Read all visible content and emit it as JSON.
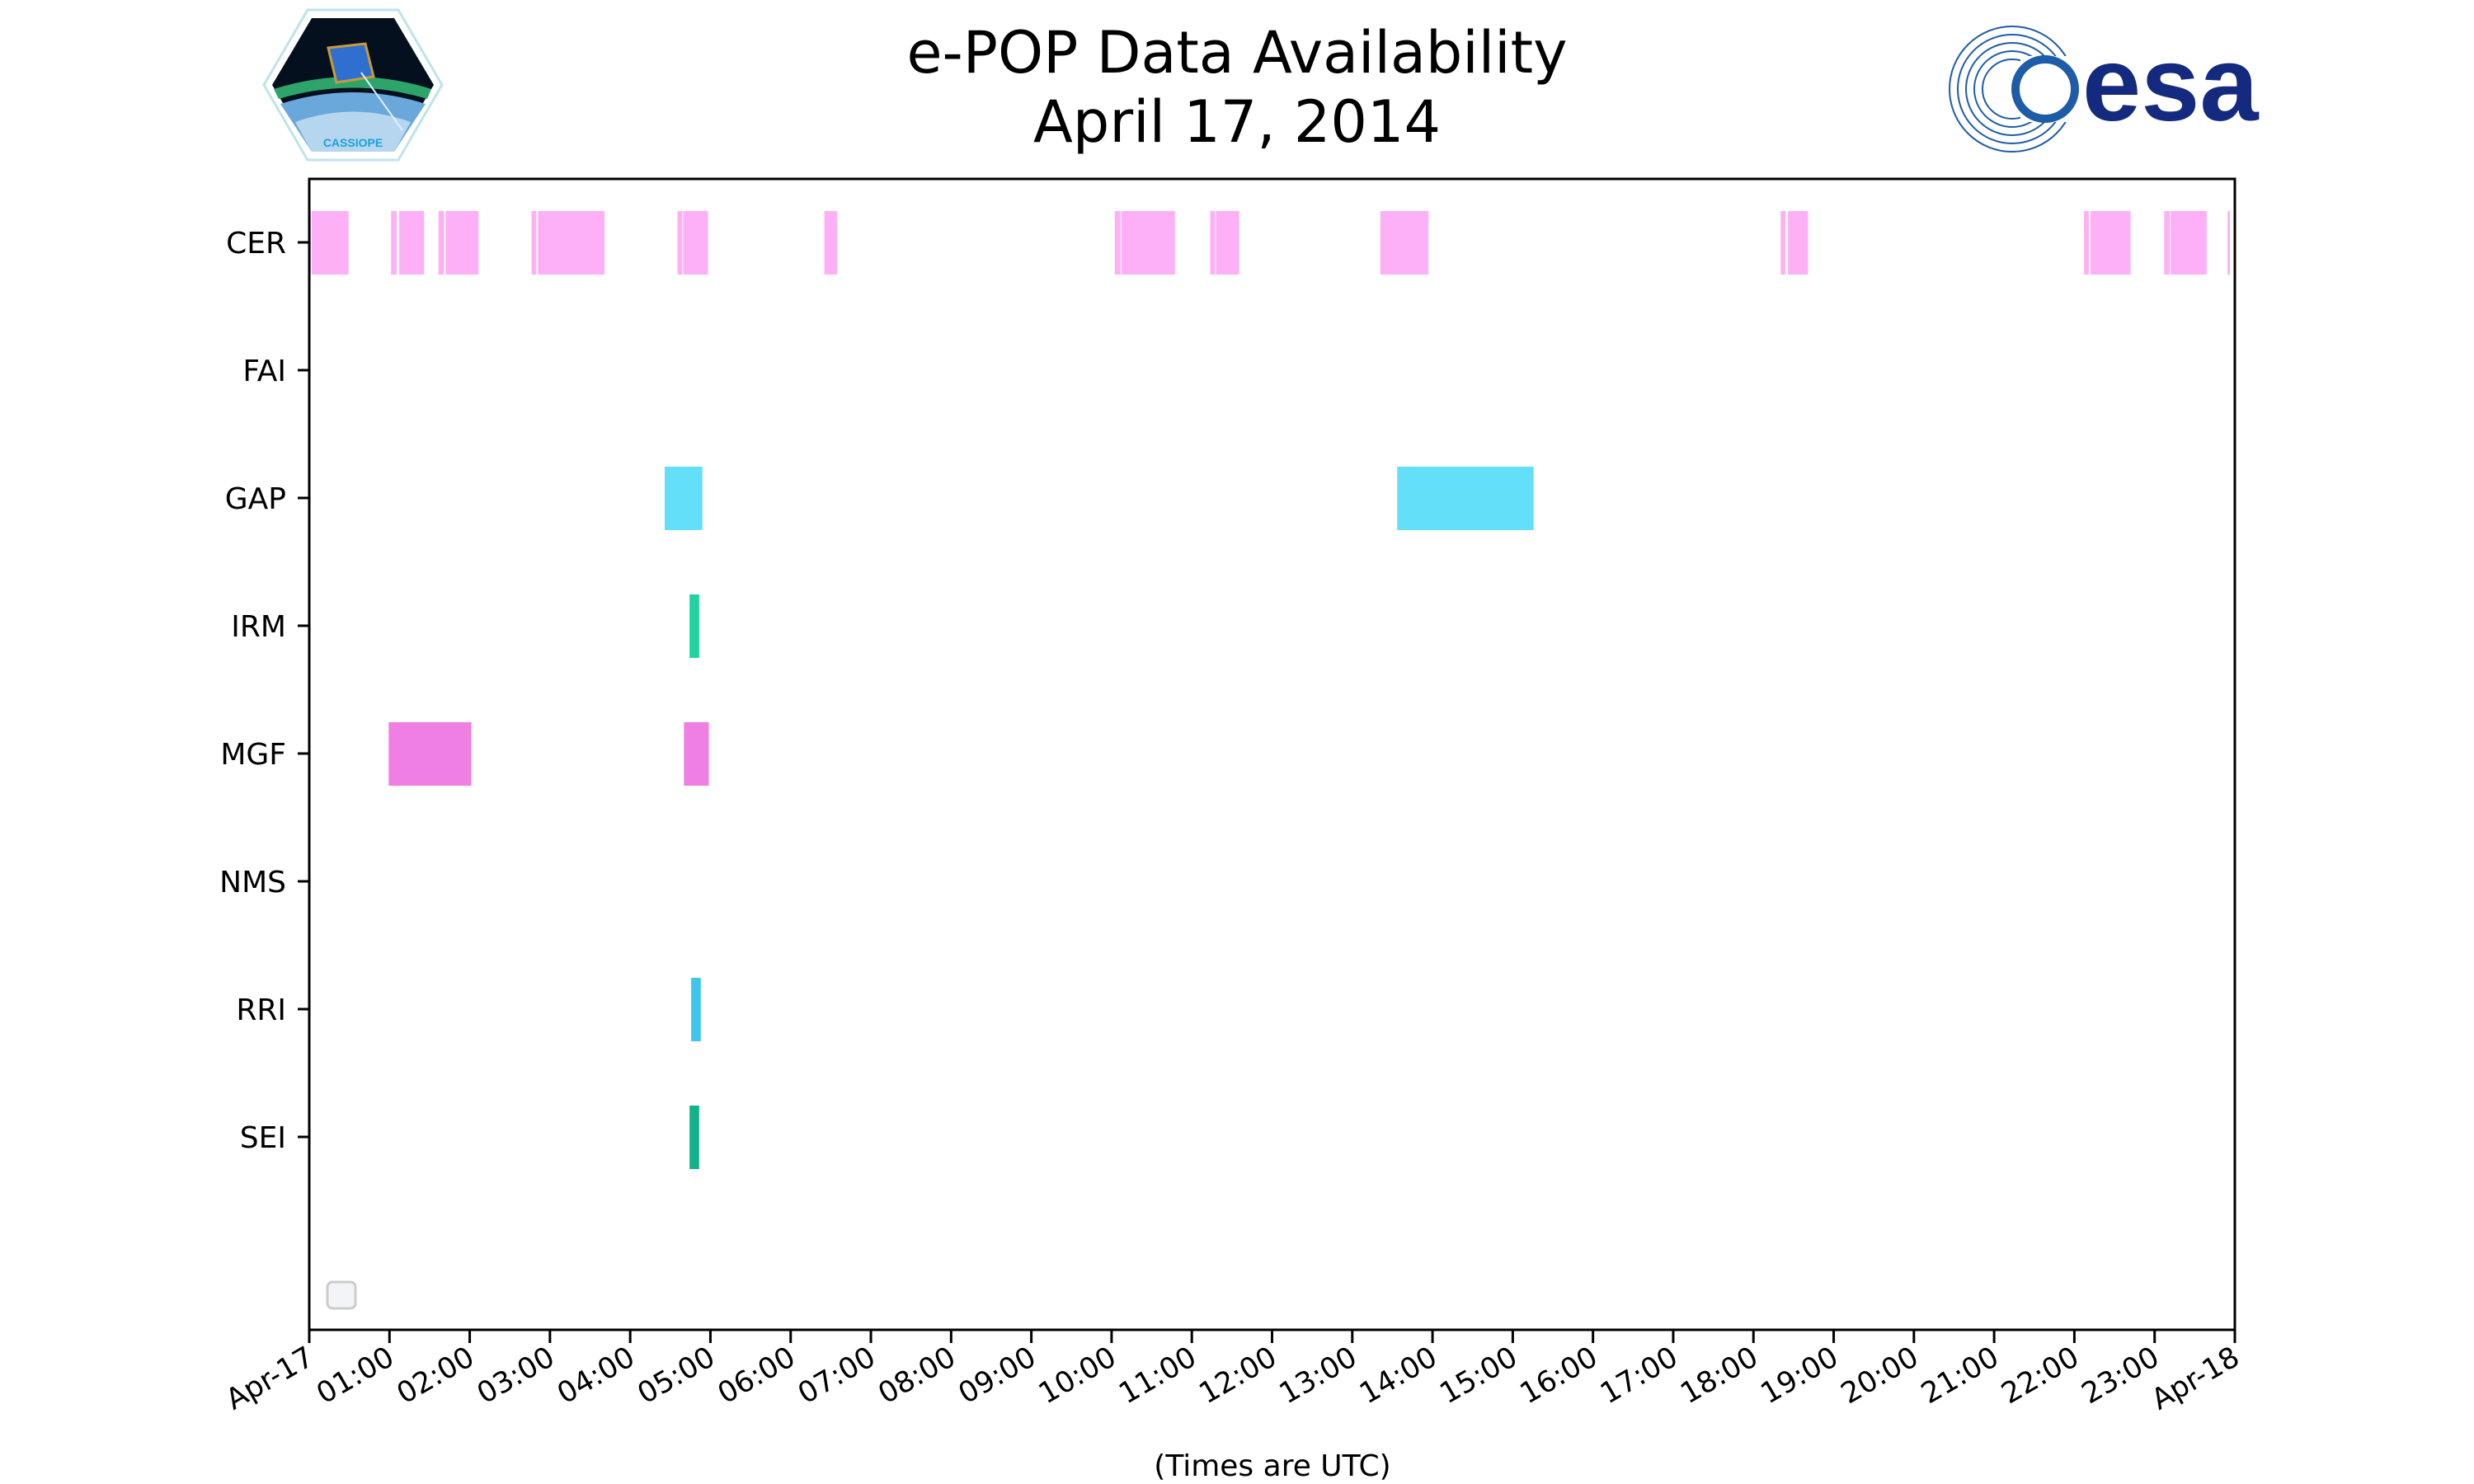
{
  "header": {
    "title_line1": "e-POP Data Availability",
    "title_line2": "April 17, 2014",
    "left_logo_text": "CASSIOPE",
    "right_logo_text": "esa"
  },
  "chart_data": {
    "type": "broken_barh",
    "title": "e-POP Data Availability\nApril 17, 2014",
    "xlabel": "(Times are UTC)",
    "ylabel": "",
    "xlim_hours": [
      0,
      24
    ],
    "x_tick_labels": [
      "Apr-17",
      "01:00",
      "02:00",
      "03:00",
      "04:00",
      "05:00",
      "06:00",
      "07:00",
      "08:00",
      "09:00",
      "10:00",
      "11:00",
      "12:00",
      "13:00",
      "14:00",
      "15:00",
      "16:00",
      "17:00",
      "18:00",
      "19:00",
      "20:00",
      "21:00",
      "22:00",
      "23:00",
      "Apr-18"
    ],
    "grid": false,
    "legend": "empty legend box, lower-left",
    "instruments": [
      {
        "name": "CER",
        "color": "#fdb0f5",
        "intervals": [
          [
            0.0,
            0.02
          ],
          [
            0.03,
            0.49
          ],
          [
            1.02,
            1.09
          ],
          [
            1.12,
            1.43
          ],
          [
            1.61,
            1.68
          ],
          [
            1.7,
            2.11
          ],
          [
            2.77,
            2.83
          ],
          [
            2.85,
            3.68
          ],
          [
            4.59,
            4.65
          ],
          [
            4.66,
            4.97
          ],
          [
            6.42,
            6.58
          ],
          [
            10.04,
            10.11
          ],
          [
            10.12,
            10.79
          ],
          [
            11.23,
            11.29
          ],
          [
            11.3,
            11.59
          ],
          [
            13.35,
            13.95
          ],
          [
            18.34,
            18.4
          ],
          [
            18.43,
            18.68
          ],
          [
            22.12,
            22.18
          ],
          [
            22.2,
            22.7
          ],
          [
            23.12,
            23.19
          ],
          [
            23.2,
            23.65
          ],
          [
            23.91,
            23.94
          ]
        ]
      },
      {
        "name": "FAI",
        "color": "#cccccc",
        "intervals": []
      },
      {
        "name": "GAP",
        "color": "#63dff9",
        "intervals": [
          [
            4.43,
            4.9
          ],
          [
            13.56,
            15.26
          ]
        ]
      },
      {
        "name": "IRM",
        "color": "#20d3a0",
        "intervals": [
          [
            4.74,
            4.86
          ]
        ]
      },
      {
        "name": "MGF",
        "color": "#f07fe4",
        "intervals": [
          [
            0.99,
            2.02
          ],
          [
            4.67,
            4.98
          ]
        ]
      },
      {
        "name": "NMS",
        "color": "#cccccc",
        "intervals": []
      },
      {
        "name": "RRI",
        "color": "#3ec7ee",
        "intervals": [
          [
            4.76,
            4.88
          ]
        ]
      },
      {
        "name": "SEI",
        "color": "#12b38a",
        "intervals": [
          [
            4.74,
            4.86
          ]
        ]
      }
    ]
  }
}
